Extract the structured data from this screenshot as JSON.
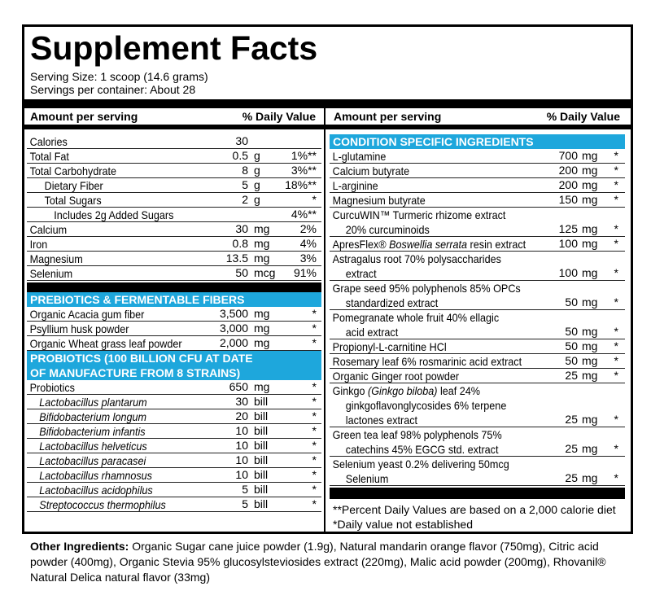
{
  "title": "Supplement Facts",
  "serving_size": "Serving Size: 1 scoop (14.6 grams)",
  "servings": "Servings per container: About 28",
  "left": {
    "header": {
      "amount": "Amount per serving",
      "dv": "% Daily Value"
    },
    "rows": [
      {
        "lines": [
          "Calories"
        ],
        "amount": "30"
      },
      {
        "lines": [
          "Total Fat"
        ],
        "amount": "0.5",
        "unit": "g",
        "dv": "1%**"
      },
      {
        "lines": [
          "Total Carbohydrate"
        ],
        "amount": "8",
        "unit": "g",
        "dv": "3%**"
      },
      {
        "lines": [
          "Dietary Fiber"
        ],
        "indent": 2,
        "amount": "5",
        "unit": "g",
        "dv": "18%**"
      },
      {
        "lines": [
          "Total Sugars"
        ],
        "indent": 2,
        "amount": "2",
        "unit": "g",
        "dv": "*"
      },
      {
        "lines": [
          "Includes 2g Added Sugars"
        ],
        "indent": 3,
        "dv": "4%**"
      },
      {
        "lines": [
          "Calcium"
        ],
        "amount": "30",
        "unit": "mg",
        "dv": "2%"
      },
      {
        "lines": [
          "Iron"
        ],
        "amount": "0.8",
        "unit": "mg",
        "dv": "4%"
      },
      {
        "lines": [
          "Magnesium"
        ],
        "amount": "13.5",
        "unit": "mg",
        "dv": "3%"
      },
      {
        "lines": [
          "Selenium"
        ],
        "amount": "50",
        "unit": "mcg",
        "dv": "91%"
      }
    ],
    "sections": [
      {
        "title": [
          "PREBIOTICS & FERMENTABLE FIBERS"
        ],
        "rows": [
          {
            "lines": [
              "Organic Acacia gum fiber"
            ],
            "amount": "3,500",
            "unit": "mg",
            "dv": "*"
          },
          {
            "lines": [
              "Psyllium husk powder"
            ],
            "amount": "3,000",
            "unit": "mg",
            "dv": "*"
          },
          {
            "lines": [
              "Organic Wheat grass leaf powder"
            ],
            "amount": "2,000",
            "unit": "mg",
            "dv": "*"
          }
        ]
      },
      {
        "title": [
          "PROBIOTICS (100 BILLION CFU AT DATE",
          "OF MANUFACTURE FROM 8 STRAINS)"
        ],
        "rows": [
          {
            "lines": [
              "Probiotics"
            ],
            "amount": "650",
            "unit": "mg",
            "dv": "*"
          },
          {
            "lines": [
              "Lactobacillus plantarum"
            ],
            "indent": 1,
            "italic": true,
            "amount": "30",
            "unit": "bill",
            "dv": "*"
          },
          {
            "lines": [
              "Bifidobacterium longum"
            ],
            "indent": 1,
            "italic": true,
            "amount": "20",
            "unit": "bill",
            "dv": "*"
          },
          {
            "lines": [
              "Bifidobacterium infantis"
            ],
            "indent": 1,
            "italic": true,
            "amount": "10",
            "unit": "bill",
            "dv": "*"
          },
          {
            "lines": [
              "Lactobacillus helveticus"
            ],
            "indent": 1,
            "italic": true,
            "amount": "10",
            "unit": "bill",
            "dv": "*"
          },
          {
            "lines": [
              "Lactobacillus paracasei"
            ],
            "indent": 1,
            "italic": true,
            "amount": "10",
            "unit": "bill",
            "dv": "*"
          },
          {
            "lines": [
              "Lactobacillus rhamnosus"
            ],
            "indent": 1,
            "italic": true,
            "amount": "10",
            "unit": "bill",
            "dv": "*"
          },
          {
            "lines": [
              "Lactobacillus acidophilus"
            ],
            "indent": 1,
            "italic": true,
            "amount": "5",
            "unit": "bill",
            "dv": "*"
          },
          {
            "lines": [
              "Streptococcus thermophilus"
            ],
            "indent": 1,
            "italic": true,
            "amount": "5",
            "unit": "bill",
            "dv": "*"
          }
        ]
      }
    ]
  },
  "right": {
    "header": {
      "amount": "Amount per serving",
      "dv": "% Daily Value"
    },
    "sections": [
      {
        "title": [
          "CONDITION SPECIFIC INGREDIENTS"
        ],
        "rows": [
          {
            "lines": [
              "L-glutamine"
            ],
            "amount": "700",
            "unit": "mg",
            "dv": "*"
          },
          {
            "lines": [
              "Calcium butyrate"
            ],
            "amount": "200",
            "unit": "mg",
            "dv": "*"
          },
          {
            "lines": [
              "L-arginine"
            ],
            "amount": "200",
            "unit": "mg",
            "dv": "*"
          },
          {
            "lines": [
              "Magnesium butyrate"
            ],
            "amount": "150",
            "unit": "mg",
            "dv": "*"
          },
          {
            "lines": [
              "CurcuWIN™ Turmeric rhizome extract",
              "20% curcuminoids"
            ],
            "amount": "125",
            "unit": "mg",
            "dv": "*"
          },
          {
            "lines": [
              [
                {
                  "text": "ApresFlex® "
                },
                {
                  "text": "Boswellia serrata",
                  "italic": true
                },
                {
                  "text": " resin extract"
                }
              ]
            ],
            "amount": "100",
            "unit": "mg",
            "dv": "*"
          },
          {
            "lines": [
              "Astragalus root 70% polysaccharides",
              "extract"
            ],
            "amount": "100",
            "unit": "mg",
            "dv": "*"
          },
          {
            "lines": [
              "Grape seed 95% polyphenols 85% OPCs",
              "standardized extract"
            ],
            "amount": "50",
            "unit": "mg",
            "dv": "*"
          },
          {
            "lines": [
              "Pomegranate whole fruit  40% ellagic",
              "acid extract"
            ],
            "amount": "50",
            "unit": "mg",
            "dv": "*"
          },
          {
            "lines": [
              "Propionyl-L-carnitine HCl"
            ],
            "amount": "50",
            "unit": "mg",
            "dv": "*"
          },
          {
            "lines": [
              "Rosemary leaf  6% rosmarinic acid extract"
            ],
            "amount": "50",
            "unit": "mg",
            "dv": "*"
          },
          {
            "lines": [
              "Organic Ginger root powder"
            ],
            "amount": "25",
            "unit": "mg",
            "dv": "*"
          },
          {
            "lines": [
              [
                {
                  "text": "Ginkgo "
                },
                {
                  "text": "(Ginkgo biloba)",
                  "italic": true
                },
                {
                  "text": " leaf 24%"
                }
              ],
              "ginkgoflavonglycosides 6% terpene",
              "lactones extract"
            ],
            "amount": "25",
            "unit": "mg",
            "dv": "*"
          },
          {
            "lines": [
              "Green tea leaf 98% polyphenols 75%",
              "catechins 45% EGCG std. extract"
            ],
            "amount": "25",
            "unit": "mg",
            "dv": "*"
          },
          {
            "lines": [
              "Selenium yeast 0.2% delivering 50mcg",
              "Selenium"
            ],
            "amount": "25",
            "unit": "mg",
            "dv": "*"
          }
        ]
      }
    ],
    "footnotes": [
      "**Percent Daily Values are based on a 2,000 calorie diet",
      "*Daily value not established"
    ]
  },
  "other_ingredients": {
    "label": "Other Ingredients:",
    "text": "Organic Sugar cane juice powder (1.9g), Natural mandarin orange flavor (750mg), Citric acid powder (400mg), Organic Stevia 95% glucosylsteviosides extract (220mg), Malic acid powder (200mg), Rhovanil® Natural Delica natural flavor (33mg)"
  }
}
